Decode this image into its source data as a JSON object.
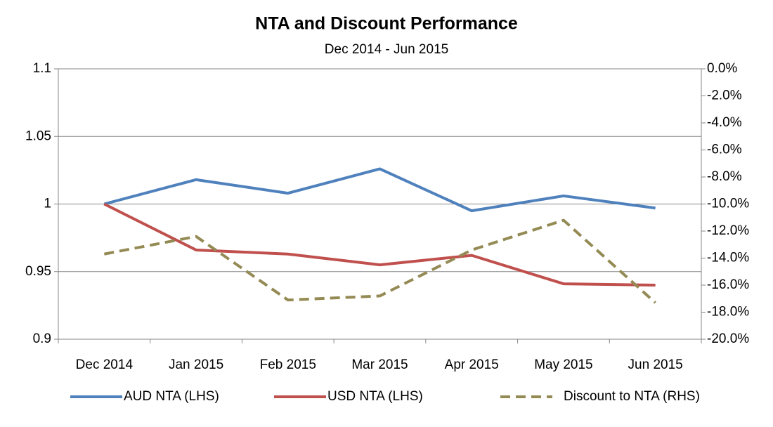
{
  "chart_data": {
    "type": "line",
    "title": "NTA and Discount Performance",
    "subtitle": "Dec 2014 - Jun 2015",
    "categories": [
      "Dec 2014",
      "Jan 2015",
      "Feb 2015",
      "Mar 2015",
      "Apr 2015",
      "May 2015",
      "Jun 2015"
    ],
    "series": [
      {
        "name": "AUD NTA (LHS)",
        "color": "#4f81bd",
        "values": [
          1.0,
          1.018,
          1.008,
          1.026,
          0.995,
          1.006,
          0.997
        ]
      },
      {
        "name": "USD NTA (LHS)",
        "color": "#c0504d",
        "values": [
          1.0,
          0.966,
          0.963,
          0.955,
          0.962,
          0.941,
          0.94
        ]
      },
      {
        "name": "Discount to NTA (RHS)",
        "color": "#948a54",
        "dashed": true,
        "axis": "y2",
        "values": [
          -13.7,
          -12.4,
          -17.1,
          -16.8,
          -13.4,
          -11.2,
          -17.3
        ]
      }
    ],
    "ylim": [
      0.9,
      1.1
    ],
    "yticks": [
      0.9,
      0.95,
      1,
      1.05,
      1.1
    ],
    "y2lim": [
      -20,
      0
    ],
    "y2ticks": [
      {
        "value": -20,
        "label": "-20.0%"
      },
      {
        "value": -18,
        "label": "-18.0%"
      },
      {
        "value": -16,
        "label": "-16.0%"
      },
      {
        "value": -14,
        "label": "-14.0%"
      },
      {
        "value": -12,
        "label": "-12.0%"
      },
      {
        "value": -10,
        "label": "-10.0%"
      },
      {
        "value": -8,
        "label": "-8.0%"
      },
      {
        "value": -6,
        "label": "-6.0%"
      },
      {
        "value": -4,
        "label": "-4.0%"
      },
      {
        "value": -2,
        "label": "-2.0%"
      },
      {
        "value": 0,
        "label": "0.0%"
      }
    ],
    "grid": true,
    "legend": "bottom"
  }
}
